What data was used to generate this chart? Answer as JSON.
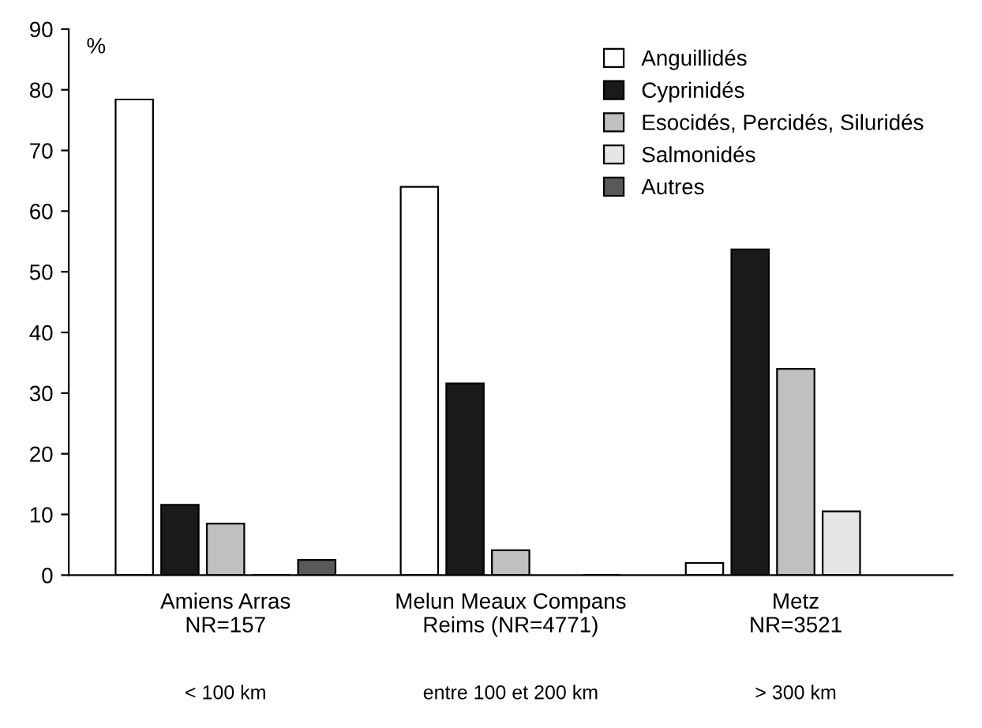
{
  "chart_data": {
    "type": "bar",
    "ylabel": "%",
    "categories": [
      "Amiens Arras\nNR=157",
      "Melun Meaux Compans\nReims (NR=4771)",
      "Metz\nNR=3521"
    ],
    "series": [
      {
        "name": "Anguillidés",
        "color": "#ffffff",
        "values": [
          78.4,
          64.0,
          2.0
        ]
      },
      {
        "name": "Cyprinidés",
        "color": "#1a1a1a",
        "values": [
          11.6,
          31.6,
          53.7
        ]
      },
      {
        "name": "Esocidés, Percidés, Siluridés",
        "color": "#c0c0c0",
        "values": [
          8.5,
          4.1,
          34.0
        ]
      },
      {
        "name": "Salmonidés",
        "color": "#e6e6e6",
        "values": [
          0,
          null,
          10.5
        ]
      },
      {
        "name": "Autres",
        "color": "#595959",
        "values": [
          2.5,
          0,
          null
        ]
      }
    ],
    "ylim": [
      0,
      90
    ],
    "yticks": [
      0,
      10,
      20,
      30,
      40,
      50,
      60,
      70,
      80,
      90
    ],
    "grid": false,
    "legend": "top right",
    "annotations": [
      "< 100 km",
      "entre 100 et 200 km",
      "> 300 km"
    ]
  }
}
